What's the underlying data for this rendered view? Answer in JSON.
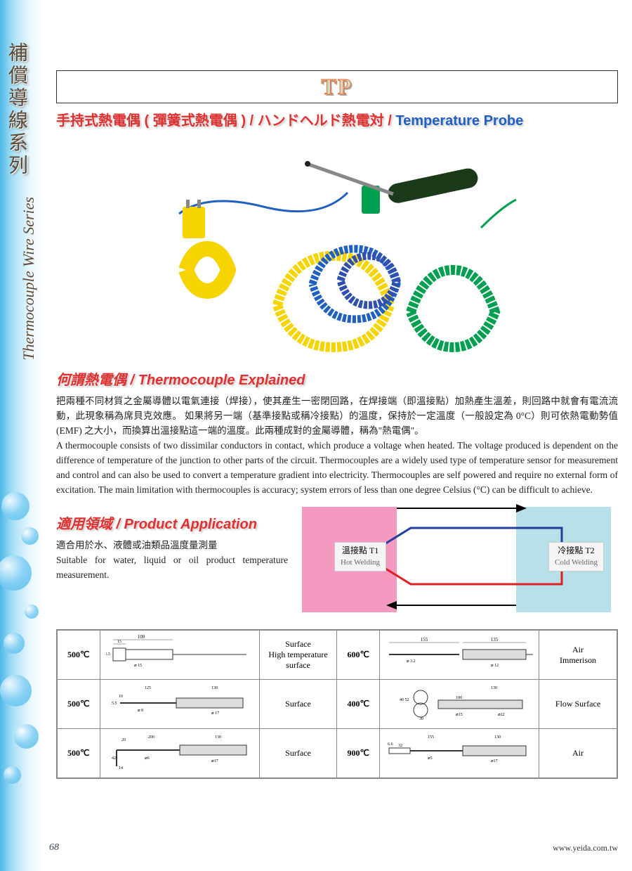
{
  "sidebar": {
    "cn": "補償導線系列",
    "en": "Thermocouple Wire Series"
  },
  "header": {
    "tp": "TP",
    "subtitle_cn": "手持式熱電偶 ( 彈簧式熱電偶 ) / ハンドヘルド熱電対 / ",
    "subtitle_en": "Temperature Probe"
  },
  "product_image": {
    "coil_colors": [
      "#f5d400",
      "#2060c0",
      "#00a050",
      "#3040a0"
    ],
    "probe_color": "#1a3a1a",
    "connector_colors": [
      "#f5d400",
      "#00a050"
    ]
  },
  "section1": {
    "title": "何謂熱電偶 / Thermocouple Explained",
    "body_cn": "把兩種不同材質之金屬導體以電氣連接（焊接），使其產生一密閉回路，在焊接端（即溫接點）加熱產生溫差，則回路中就會有電流流動，此現象稱為席貝克效應。 如果將另一端（基準接點或稱冷接點）的溫度，保持於一定溫度（一般設定為 0°C）則可依熱電動勢值 (EMF) 之大小，而換算出溫接點這一端的溫度。此兩種成對的金屬導體，稱為\"熱電偶\"。",
    "body_en": "A thermocouple consists of two dissimilar conductors in contact, which produce a voltage when heated. The voltage produced is dependent on the difference of temperature of the junction to other parts of the circuit. Thermocouples are a widely used type of temperature sensor for measurement and control and can also be used to convert a temperature gradient into electricity. Thermocouples are self powered and require no external form of excitation. The main limitation with thermocouples is accuracy; system errors of less than one degree Celsius (°C) can be difficult to achieve."
  },
  "section2": {
    "title": "適用領域 / Product Application",
    "body_cn": "適合用於水、液體或油類品溫度量測量",
    "body_en": "Suitable for water, liquid or oil product temperature measurement."
  },
  "diagram": {
    "hot_cn": "溫接點 T1",
    "hot_en": "Hot Welding",
    "cold_cn": "冷接點 T2",
    "cold_en": "Cold Welding",
    "hot_bg": "#f49ac1",
    "cold_bg": "#b8e0e8",
    "line_blue": "#2040a0",
    "line_red": "#e02020"
  },
  "table": {
    "rows": [
      {
        "t1": "500℃",
        "d1_l1": "Surface",
        "d1_l2": "High temperature surface",
        "t2": "600℃",
        "d2_l1": "Air",
        "d2_l2": "Immerison"
      },
      {
        "t1": "500℃",
        "d1_l1": "Surface",
        "d1_l2": "",
        "t2": "400℃",
        "d2_l1": "Flow Surface",
        "d2_l2": ""
      },
      {
        "t1": "500℃",
        "d1_l1": "Surface",
        "d1_l2": "",
        "t2": "900℃",
        "d2_l1": "Air",
        "d2_l2": ""
      }
    ],
    "probe_dims": {
      "r0p1": [
        "100",
        "15",
        "15",
        "5.5"
      ],
      "r0p2": [
        "155",
        "135",
        "3.2",
        "12"
      ],
      "r1p1": [
        "125",
        "130",
        "10",
        "8",
        "17",
        "5.5"
      ],
      "r1p2": [
        "130",
        "100",
        "40",
        "52",
        "30",
        "15",
        "22"
      ],
      "r2p1": [
        "200",
        "130",
        "20",
        "42",
        "6",
        "17",
        "14"
      ],
      "r2p2": [
        "155",
        "130",
        "32",
        "5",
        "17",
        "6.6"
      ]
    }
  },
  "footer": {
    "page": "68",
    "website": "www.yeida.com.tw"
  }
}
